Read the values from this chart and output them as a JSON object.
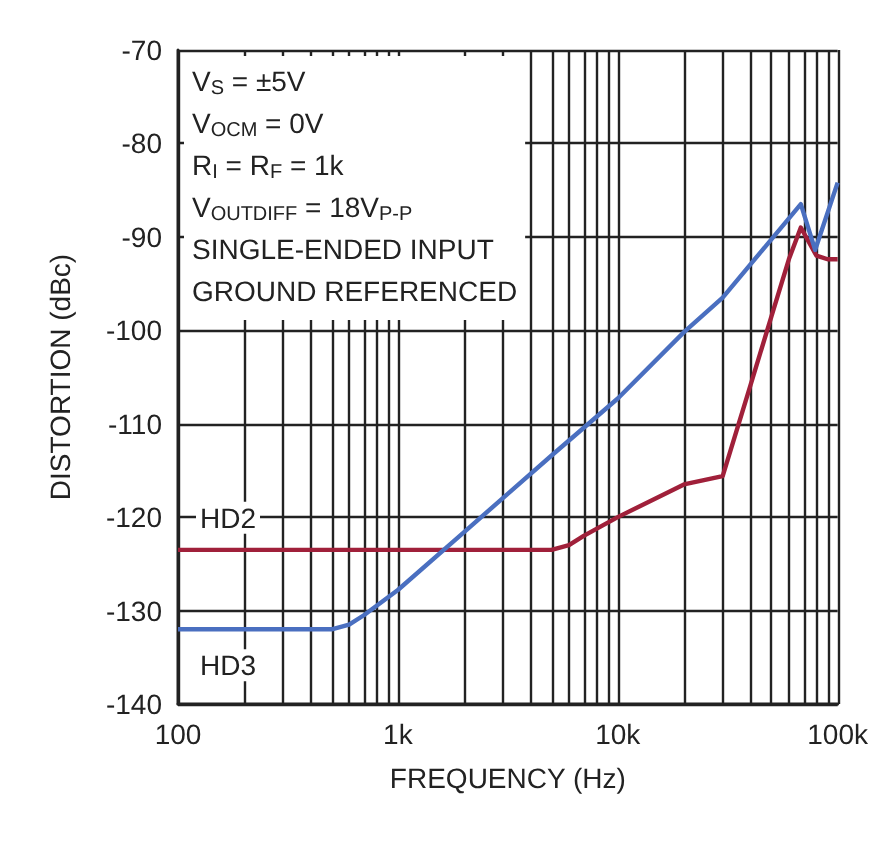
{
  "chart_data": {
    "type": "line",
    "xlabel": "FREQUENCY (Hz)",
    "ylabel": "DISTORTION (dBc)",
    "annotations": [
      "V$_{S}$ = ±5V",
      "V$_{OCM}$ = 0V",
      "R$_{I}$ = R$_{F}$ = 1k",
      "V$_{OUTDIFF}$ = 18V$_{P-P}$",
      "SINGLE-ENDED INPUT",
      "GROUND REFERENCED"
    ],
    "log": "x",
    "grid": true,
    "legend": false,
    "marker": "none",
    "line_style": "solid",
    "xlim": [
      100,
      100000
    ],
    "xticks": [
      {
        "value": 100,
        "label": "100"
      },
      {
        "value": 1000,
        "label": "1k"
      },
      {
        "value": 10000,
        "label": "10k"
      },
      {
        "value": 100000,
        "label": "100k"
      }
    ],
    "ylim": [
      -140,
      -70
    ],
    "yticks": [
      -140,
      -130,
      -120,
      -110,
      -100,
      -90,
      -80,
      -70
    ],
    "series": [
      {
        "name": "HD2",
        "color": "#a0203a",
        "x": [
          100,
          1000,
          5000,
          6000,
          7000,
          10000,
          20000,
          30000,
          40000,
          50000,
          60000,
          68000,
          80000,
          90000,
          100000
        ],
        "values": [
          -123.5,
          -123.5,
          -123.5,
          -123,
          -122,
          -120,
          -116.5,
          -115.6,
          -106,
          -98.5,
          -92.4,
          -89,
          -92,
          -92.4,
          -92.4
        ]
      },
      {
        "name": "HD3",
        "color": "#4a6fc0",
        "x": [
          100,
          500,
          600,
          700,
          1000,
          2000,
          5000,
          10000,
          20000,
          30000,
          68000,
          79000,
          100000
        ],
        "values": [
          -132,
          -132,
          -131.5,
          -130.5,
          -127.8,
          -121.6,
          -113.4,
          -107.3,
          -100.2,
          -96.5,
          -86.5,
          -91.4,
          -84.2
        ]
      }
    ]
  }
}
